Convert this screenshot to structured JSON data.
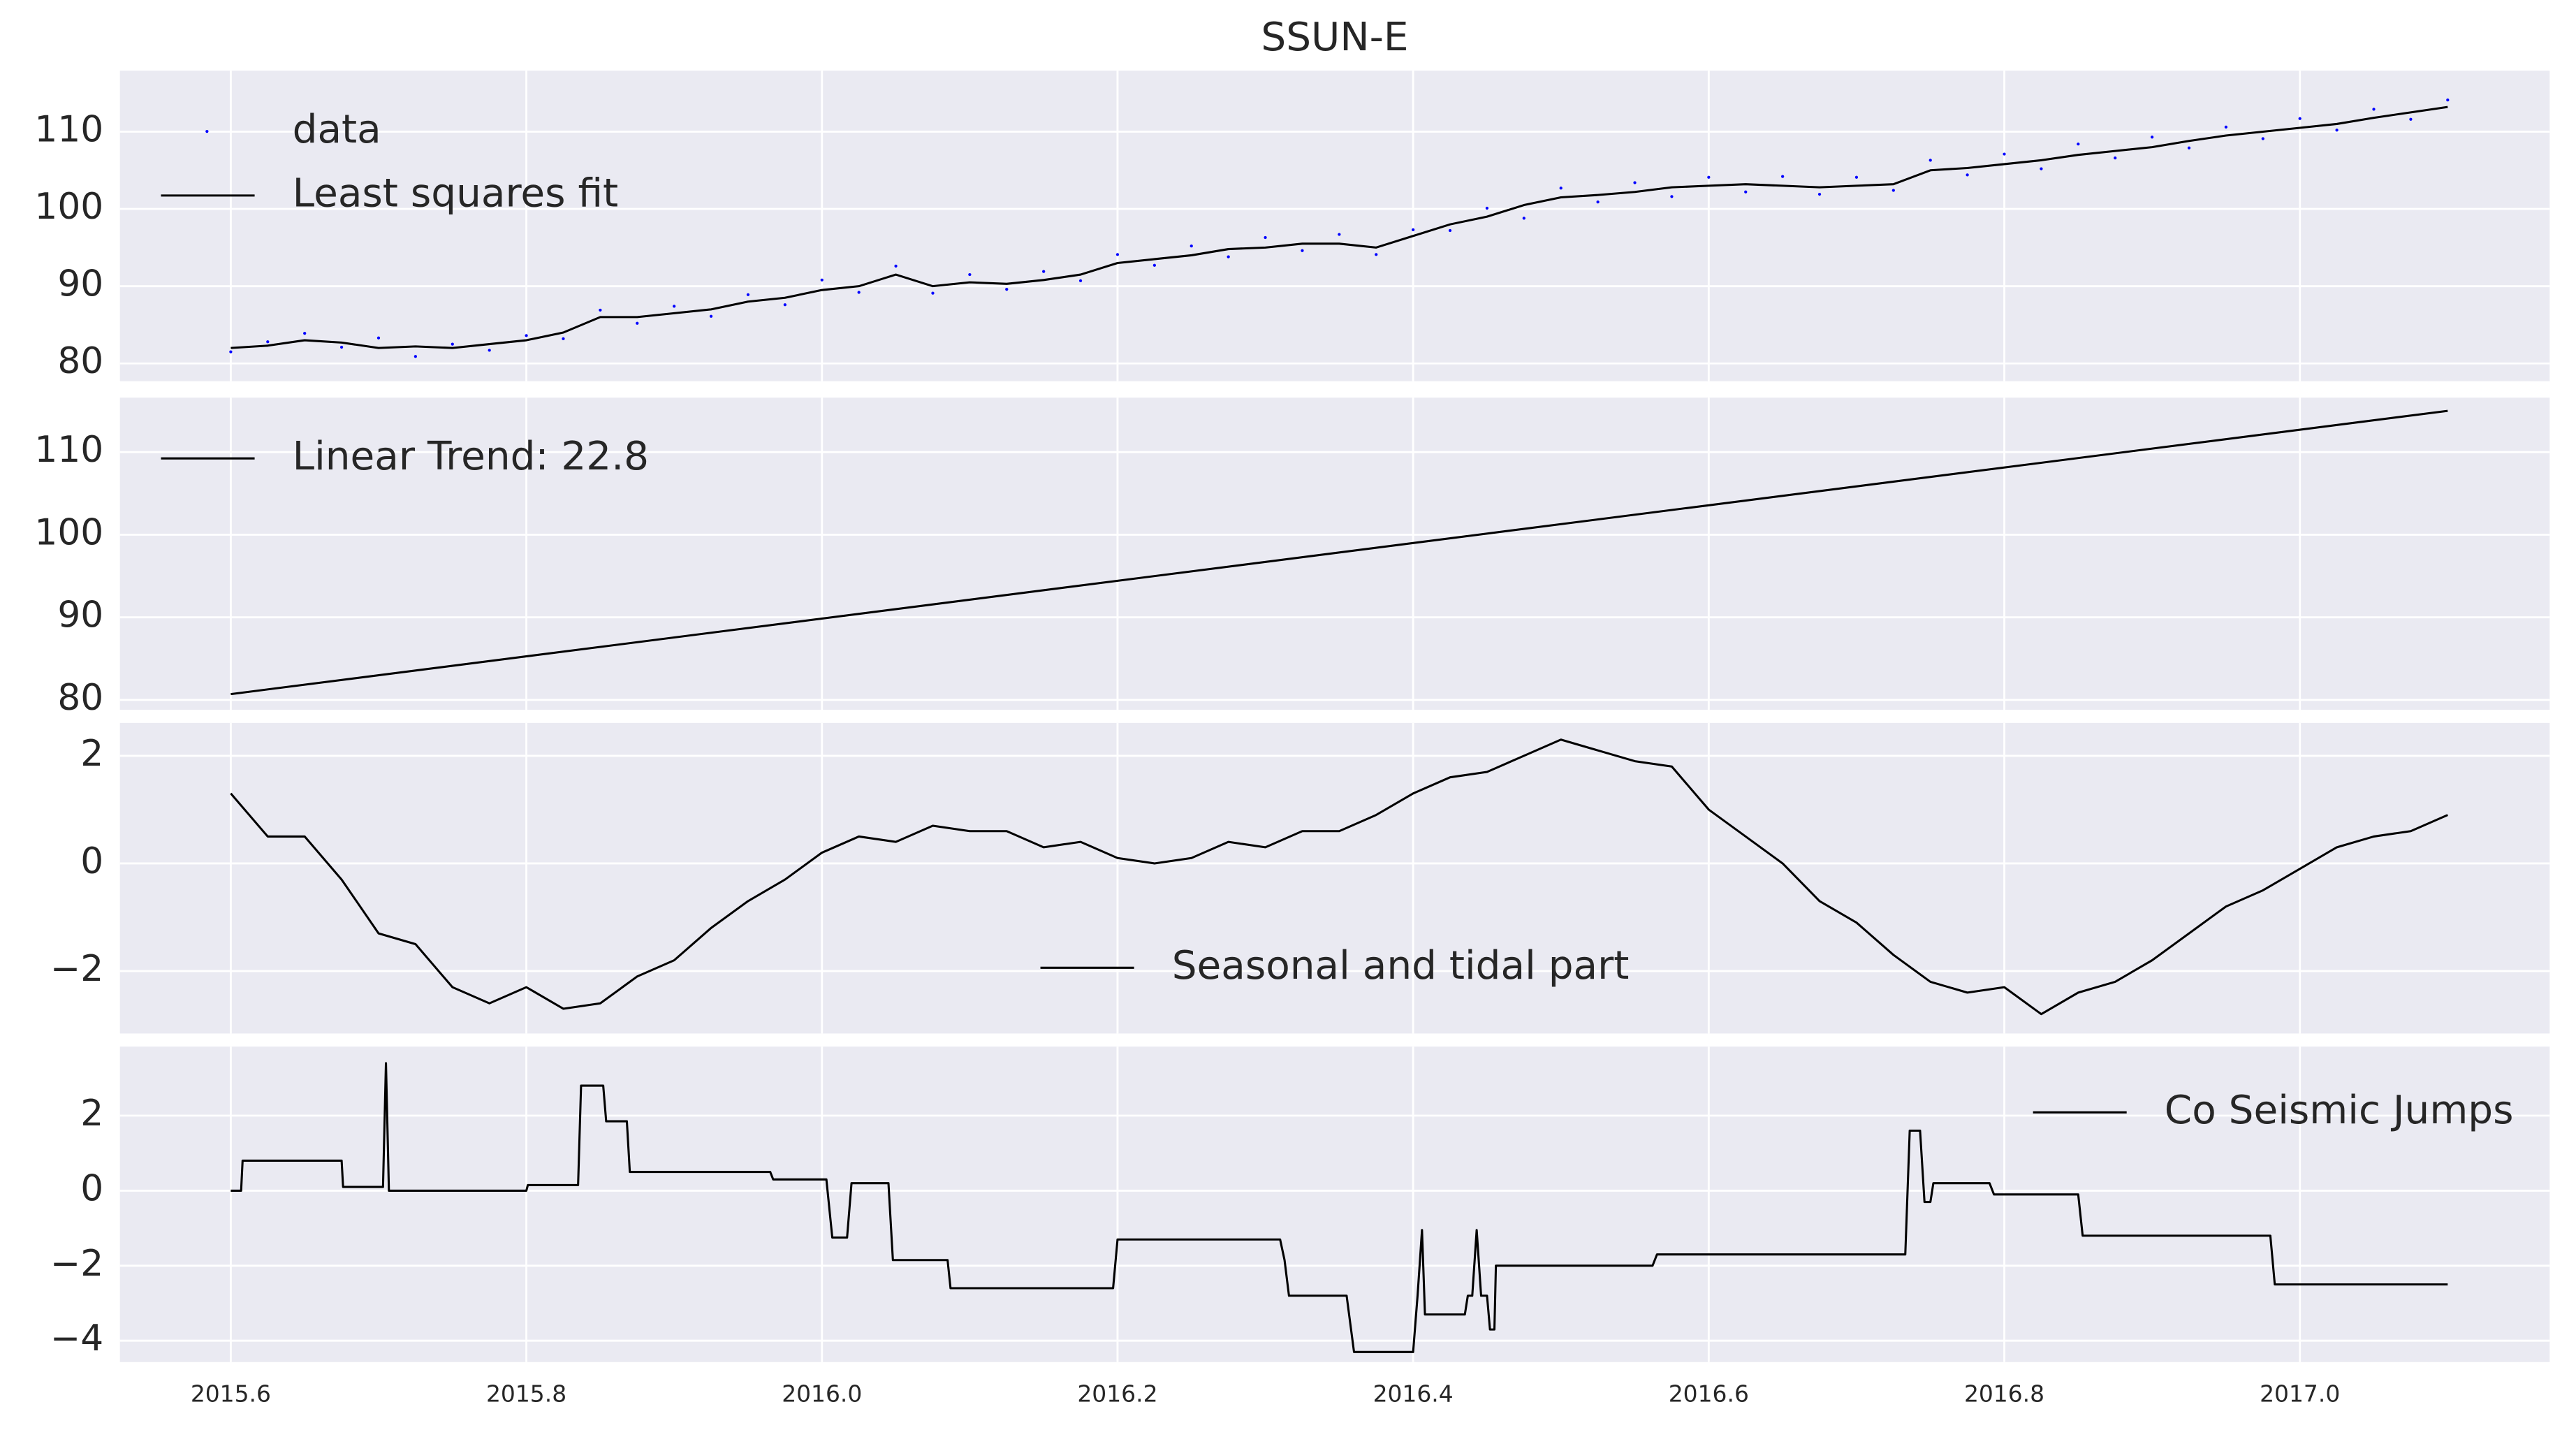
{
  "chart_data": [
    {
      "type": "line",
      "title": "SSUN-E",
      "legend": "upper left",
      "x": [
        2015.6,
        2015.625,
        2015.65,
        2015.675,
        2015.7,
        2015.725,
        2015.75,
        2015.775,
        2015.8,
        2015.825,
        2015.85,
        2015.875,
        2015.9,
        2015.925,
        2015.95,
        2015.975,
        2016.0,
        2016.025,
        2016.05,
        2016.075,
        2016.1,
        2016.125,
        2016.15,
        2016.175,
        2016.2,
        2016.225,
        2016.25,
        2016.275,
        2016.3,
        2016.325,
        2016.35,
        2016.375,
        2016.4,
        2016.425,
        2016.45,
        2016.475,
        2016.5,
        2016.525,
        2016.55,
        2016.575,
        2016.6,
        2016.625,
        2016.65,
        2016.675,
        2016.7,
        2016.725,
        2016.75,
        2016.775,
        2016.8,
        2016.825,
        2016.85,
        2016.875,
        2016.9,
        2016.925,
        2016.95,
        2016.975,
        2017.0,
        2017.025,
        2017.05,
        2017.075,
        2017.1
      ],
      "series": [
        {
          "name": "data",
          "type": "scatter",
          "color": "#0000ff",
          "values": [
            81.5,
            82.8,
            83.9,
            82.1,
            83.3,
            80.9,
            82.5,
            81.7,
            83.6,
            83.2,
            86.9,
            85.2,
            87.4,
            86.1,
            88.9,
            87.6,
            90.8,
            89.2,
            92.6,
            89.1,
            91.5,
            89.6,
            91.9,
            90.7,
            94.1,
            92.7,
            95.2,
            93.8,
            96.3,
            94.6,
            96.7,
            94.1,
            97.3,
            97.2,
            100.1,
            98.8,
            102.7,
            100.9,
            103.4,
            101.6,
            104.1,
            102.2,
            104.2,
            101.9,
            104.1,
            102.4,
            106.3,
            104.4,
            107.1,
            105.2,
            108.4,
            106.6,
            109.3,
            107.9,
            110.6,
            109.1,
            111.7,
            110.2,
            112.9,
            111.6,
            114.1
          ]
        },
        {
          "name": "Least squares fit",
          "type": "line",
          "color": "#000000",
          "values": [
            82,
            82.3,
            83,
            82.7,
            82,
            82.2,
            82,
            82.5,
            83,
            84,
            86,
            86,
            86.5,
            87,
            88,
            88.5,
            89.5,
            90,
            91.5,
            90,
            90.5,
            90.3,
            90.8,
            91.5,
            93,
            93.5,
            94,
            94.8,
            95,
            95.5,
            95.5,
            95,
            96.5,
            98,
            99,
            100.5,
            101.5,
            101.8,
            102.2,
            102.8,
            103,
            103.2,
            103,
            102.8,
            103,
            103.2,
            105,
            105.3,
            105.8,
            106.3,
            107,
            107.5,
            108,
            108.8,
            109.5,
            110,
            110.5,
            111,
            111.8,
            112.5,
            113.2
          ]
        }
      ],
      "xlim": [
        2015.525,
        2017.169
      ],
      "ylim": [
        77.7,
        117.9
      ],
      "yticks": [
        80,
        90,
        100,
        110
      ],
      "grid": true
    },
    {
      "type": "line",
      "legend": "upper left",
      "x": [
        2015.6,
        2017.1
      ],
      "series": [
        {
          "name": "Linear Trend: 22.8",
          "type": "line",
          "color": "#000000",
          "values": [
            80.7,
            115.0
          ]
        }
      ],
      "xlim": [
        2015.525,
        2017.169
      ],
      "ylim": [
        78.8,
        116.6
      ],
      "yticks": [
        80,
        90,
        100,
        110
      ],
      "grid": true
    },
    {
      "type": "line",
      "legend": "lower center",
      "x": [
        2015.6,
        2015.625,
        2015.65,
        2015.675,
        2015.7,
        2015.725,
        2015.75,
        2015.775,
        2015.8,
        2015.825,
        2015.85,
        2015.875,
        2015.9,
        2015.925,
        2015.95,
        2015.975,
        2016.0,
        2016.025,
        2016.05,
        2016.075,
        2016.1,
        2016.125,
        2016.15,
        2016.175,
        2016.2,
        2016.225,
        2016.25,
        2016.275,
        2016.3,
        2016.325,
        2016.35,
        2016.375,
        2016.4,
        2016.425,
        2016.45,
        2016.475,
        2016.5,
        2016.525,
        2016.55,
        2016.575,
        2016.6,
        2016.625,
        2016.65,
        2016.675,
        2016.7,
        2016.725,
        2016.75,
        2016.775,
        2016.8,
        2016.825,
        2016.85,
        2016.875,
        2016.9,
        2016.925,
        2016.95,
        2016.975,
        2017.0,
        2017.025,
        2017.05,
        2017.075,
        2017.1
      ],
      "series": [
        {
          "name": "Seasonal and tidal part",
          "type": "line",
          "color": "#000000",
          "values": [
            1.3,
            0.5,
            0.5,
            -0.3,
            -1.3,
            -1.5,
            -2.3,
            -2.6,
            -2.3,
            -2.7,
            -2.6,
            -2.1,
            -1.8,
            -1.2,
            -0.7,
            -0.3,
            0.2,
            0.5,
            0.4,
            0.7,
            0.6,
            0.6,
            0.3,
            0.4,
            0.1,
            0.0,
            0.1,
            0.4,
            0.3,
            0.6,
            0.6,
            0.9,
            1.3,
            1.6,
            1.7,
            2.0,
            2.3,
            2.1,
            1.9,
            1.8,
            1.0,
            0.5,
            0.0,
            -0.7,
            -1.1,
            -1.7,
            -2.2,
            -2.4,
            -2.3,
            -2.8,
            -2.4,
            -2.2,
            -1.8,
            -1.3,
            -0.8,
            -0.5,
            -0.1,
            0.3,
            0.5,
            0.6,
            0.9
          ]
        }
      ],
      "xlim": [
        2015.525,
        2017.169
      ],
      "ylim": [
        -3.16,
        2.61
      ],
      "yticks": [
        {
          "value": -2,
          "label": "−2"
        },
        0,
        2
      ],
      "grid": true
    },
    {
      "type": "line",
      "legend": "upper right",
      "x": [
        2015.6,
        2015.607,
        2015.608,
        2015.675,
        2015.676,
        2015.703,
        2015.705,
        2015.707,
        2015.8,
        2015.801,
        2015.835,
        2015.837,
        2015.852,
        2015.854,
        2015.868,
        2015.87,
        2015.965,
        2015.967,
        2016.003,
        2016.007,
        2016.017,
        2016.02,
        2016.045,
        2016.048,
        2016.085,
        2016.087,
        2016.197,
        2016.2,
        2016.31,
        2016.313,
        2016.316,
        2016.355,
        2016.36,
        2016.4,
        2016.403,
        2016.406,
        2016.408,
        2016.42,
        2016.435,
        2016.437,
        2016.44,
        2016.443,
        2016.446,
        2016.45,
        2016.452,
        2016.455,
        2016.456,
        2016.562,
        2016.565,
        2016.733,
        2016.736,
        2016.743,
        2016.746,
        2016.75,
        2016.752,
        2016.79,
        2016.793,
        2016.85,
        2016.853,
        2016.98,
        2016.983,
        2017.1
      ],
      "series": [
        {
          "name": "Co Seismic Jumps",
          "type": "line",
          "color": "#000000",
          "values": [
            0,
            0,
            0.8,
            0.8,
            0.1,
            0.1,
            3.4,
            0,
            0,
            0.15,
            0.15,
            2.8,
            2.8,
            1.85,
            1.85,
            0.5,
            0.5,
            0.3,
            0.3,
            -1.25,
            -1.25,
            0.2,
            0.2,
            -1.85,
            -1.85,
            -2.6,
            -2.6,
            -1.3,
            -1.3,
            -1.85,
            -2.8,
            -2.8,
            -4.3,
            -4.3,
            -2.8,
            -1.05,
            -3.3,
            -3.3,
            -3.3,
            -2.8,
            -2.8,
            -1.05,
            -2.8,
            -2.8,
            -3.7,
            -3.7,
            -2.0,
            -2.0,
            -1.7,
            -1.7,
            1.6,
            1.6,
            -0.3,
            -0.3,
            0.2,
            0.2,
            -0.1,
            -0.1,
            -1.2,
            -1.2,
            -2.5,
            -2.5
          ]
        }
      ],
      "xlim": [
        2015.525,
        2017.169
      ],
      "ylim": [
        -4.57,
        3.84
      ],
      "yticks": [
        {
          "value": -4,
          "label": "−4"
        },
        {
          "value": -2,
          "label": "−2"
        },
        0,
        2
      ],
      "xticks": [
        2015.6,
        2015.8,
        {
          "value": 2016,
          "label": "2016.0"
        },
        2016.2,
        2016.4,
        2016.6,
        2016.8,
        {
          "value": 2017,
          "label": "2017.0"
        }
      ],
      "grid": true
    }
  ]
}
